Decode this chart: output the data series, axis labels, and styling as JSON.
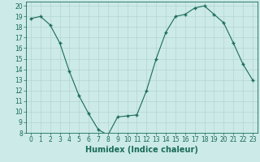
{
  "x": [
    0,
    1,
    2,
    3,
    4,
    5,
    6,
    7,
    8,
    9,
    10,
    11,
    12,
    13,
    14,
    15,
    16,
    17,
    18,
    19,
    20,
    21,
    22,
    23
  ],
  "y": [
    18.8,
    19.0,
    18.2,
    16.5,
    13.8,
    11.5,
    9.8,
    8.3,
    7.8,
    9.5,
    9.6,
    9.7,
    12.0,
    15.0,
    17.5,
    19.0,
    19.2,
    19.8,
    20.0,
    19.2,
    18.4,
    16.5,
    14.5,
    13.0
  ],
  "xlabel": "Humidex (Indice chaleur)",
  "xlim": [
    -0.5,
    23.5
  ],
  "ylim": [
    8,
    20.4
  ],
  "yticks": [
    8,
    9,
    10,
    11,
    12,
    13,
    14,
    15,
    16,
    17,
    18,
    19,
    20
  ],
  "xticks": [
    0,
    1,
    2,
    3,
    4,
    5,
    6,
    7,
    8,
    9,
    10,
    11,
    12,
    13,
    14,
    15,
    16,
    17,
    18,
    19,
    20,
    21,
    22,
    23
  ],
  "line_color": "#1a6b5a",
  "marker_color": "#1a6b5a",
  "bg_color": "#cceae7",
  "grid_color": "#b5d5d0",
  "xlabel_fontsize": 7,
  "tick_fontsize": 5.5
}
